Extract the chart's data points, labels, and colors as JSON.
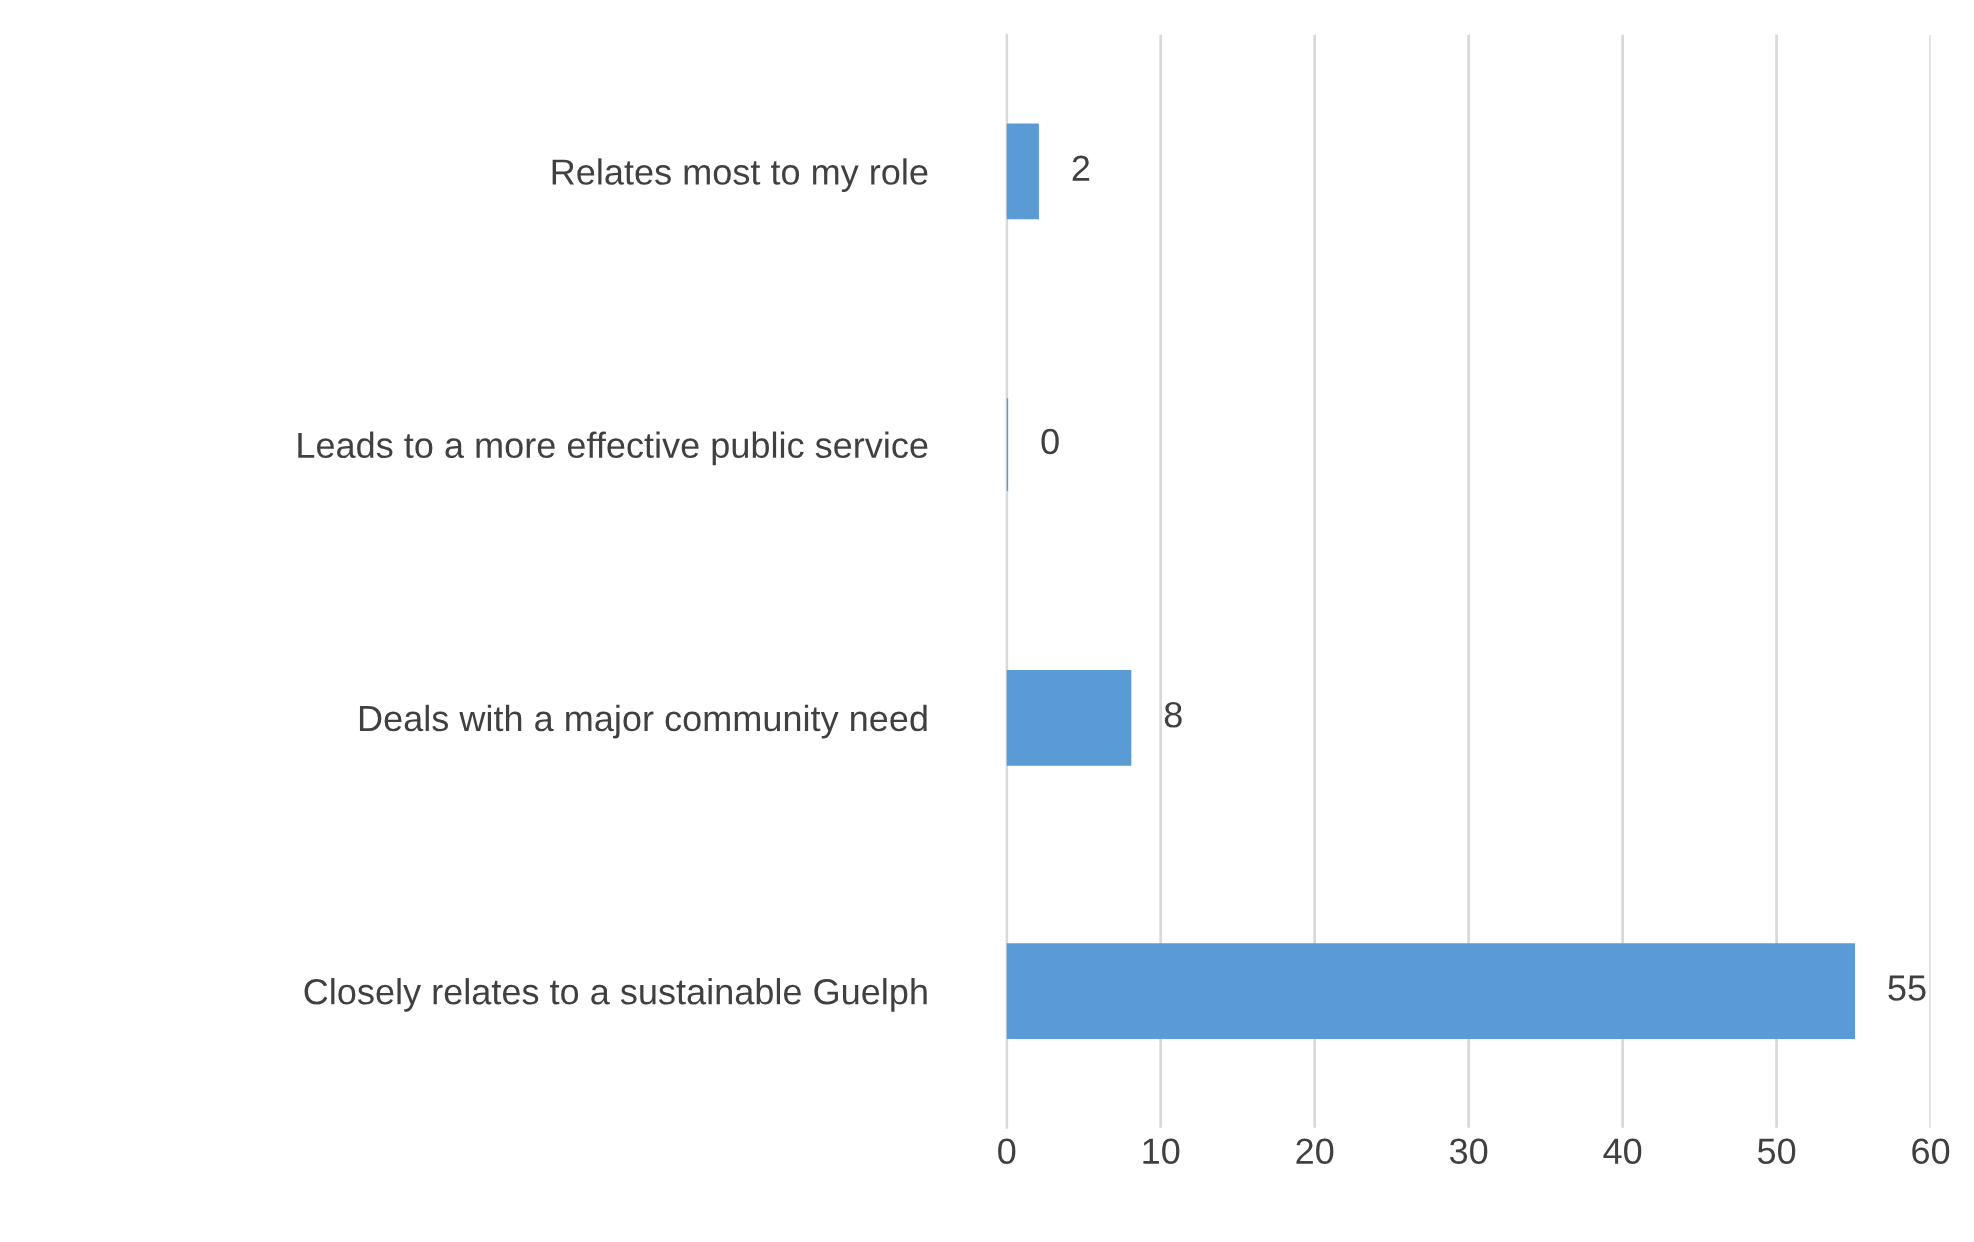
{
  "chart_data": {
    "type": "bar",
    "orientation": "horizontal",
    "categories": [
      "Relates most to my role",
      "Leads to a more effective public service",
      "Deals with a major community need",
      "Closely relates to a sustainable Guelph"
    ],
    "values": [
      2,
      0,
      8,
      55
    ],
    "color": "#5b9bd5",
    "xlim": [
      0,
      60
    ],
    "xticks": [
      0,
      10,
      20,
      30,
      40,
      50,
      60
    ],
    "grid": "x",
    "data_labels": true
  }
}
